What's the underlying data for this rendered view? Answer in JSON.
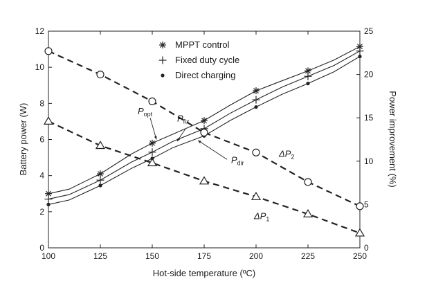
{
  "chart_data": {
    "type": "line",
    "xlabel": "Hot-side temperature (ºC)",
    "ylabel_left": "Battery power (W)",
    "ylabel_right": "Power improvement (%)",
    "xlim": [
      100,
      250
    ],
    "ylim_left": [
      0,
      12
    ],
    "ylim_right": [
      0,
      25
    ],
    "x_ticks": [
      100,
      125,
      150,
      175,
      200,
      225,
      250
    ],
    "y_ticks_left": [
      0,
      2,
      4,
      6,
      8,
      10,
      12
    ],
    "y_ticks_right": [
      0,
      5,
      10,
      15,
      20,
      25
    ],
    "grid": false,
    "legend_position": "top-center",
    "series": [
      {
        "name": "MPPT control",
        "axis": "left",
        "marker": "asterisk",
        "style": "solid",
        "x": [
          100,
          110,
          125,
          140,
          150,
          160,
          175,
          187.5,
          200,
          212.5,
          225,
          237.5,
          250
        ],
        "y": [
          3.0,
          3.25,
          4.1,
          5.2,
          5.8,
          6.3,
          7.05,
          7.9,
          8.7,
          9.25,
          9.8,
          10.4,
          11.15
        ]
      },
      {
        "name": "Fixed duty cycle",
        "axis": "left",
        "marker": "plus",
        "style": "solid",
        "x": [
          100,
          110,
          125,
          140,
          150,
          160,
          175,
          187.5,
          200,
          212.5,
          225,
          237.5,
          250
        ],
        "y": [
          2.7,
          2.95,
          3.75,
          4.75,
          5.3,
          5.9,
          6.6,
          7.45,
          8.2,
          8.9,
          9.5,
          10.1,
          10.9
        ]
      },
      {
        "name": "Direct charging",
        "axis": "left",
        "marker": "dot",
        "style": "solid",
        "x": [
          100,
          110,
          125,
          140,
          150,
          160,
          175,
          187.5,
          200,
          212.5,
          225,
          237.5,
          250
        ],
        "y": [
          2.4,
          2.65,
          3.45,
          4.4,
          4.95,
          5.55,
          6.2,
          7.05,
          7.8,
          8.5,
          9.1,
          9.75,
          10.6
        ]
      },
      {
        "name": "ΔP2",
        "axis": "right",
        "marker": "circle",
        "style": "dashed",
        "x": [
          100,
          125,
          150,
          175,
          200,
          225,
          250
        ],
        "y": [
          22.7,
          20.0,
          16.9,
          13.3,
          11.0,
          7.6,
          4.8
        ]
      },
      {
        "name": "ΔP1",
        "axis": "right",
        "marker": "triangle",
        "style": "dashed",
        "x": [
          100,
          125,
          150,
          175,
          200,
          225,
          250
        ],
        "y": [
          14.6,
          11.8,
          9.8,
          7.7,
          5.9,
          3.9,
          1.7
        ]
      }
    ],
    "annotations": [
      {
        "text": "P",
        "sub": "opt",
        "x": 143,
        "y": 7.4,
        "axis": "left"
      },
      {
        "text": "P",
        "sub": "fix",
        "x": 162,
        "y": 7.0,
        "axis": "left"
      },
      {
        "text": "P",
        "sub": "dir",
        "x": 188,
        "y": 4.7,
        "axis": "left"
      },
      {
        "text": "ΔP",
        "sub": "2",
        "x": 211,
        "y": 10.5,
        "axis": "right"
      },
      {
        "text": "ΔP",
        "sub": "1",
        "x": 199,
        "y": 3.3,
        "axis": "right"
      }
    ]
  }
}
